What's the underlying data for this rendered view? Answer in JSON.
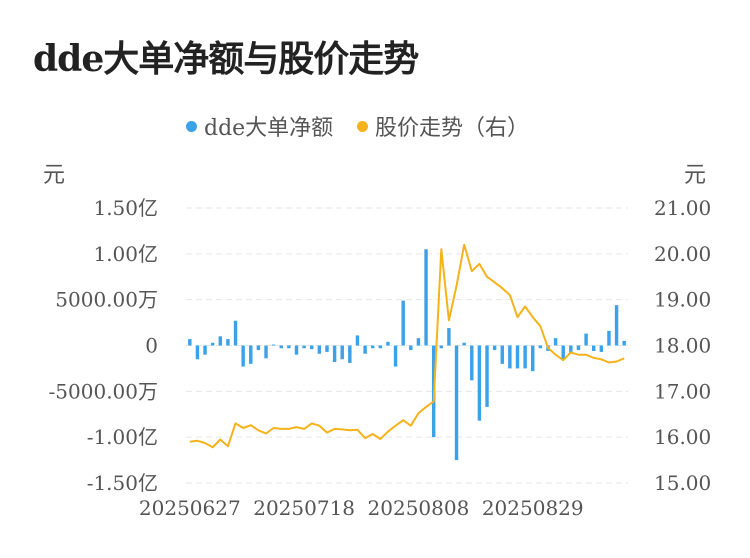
{
  "title": "dde大单净额与股价走势",
  "chart_data": {
    "type": "bar",
    "title": "dde大单净额与股价走势",
    "series": [
      {
        "name": "dde大单净额",
        "type": "bar",
        "color": "#3ba1e8",
        "axis": "left",
        "values": [
          700,
          -1500,
          -1000,
          300,
          1000,
          700,
          2700,
          -2300,
          -2000,
          -500,
          -1400,
          100,
          -300,
          -300,
          -1000,
          -300,
          -400,
          -900,
          -700,
          -1800,
          -1500,
          -1900,
          1100,
          -900,
          -300,
          -300,
          400,
          -2300,
          4900,
          -500,
          800,
          10500,
          -10000,
          -300,
          1900,
          -12500,
          300,
          -3800,
          -8200,
          -6700,
          -500,
          -2000,
          -2500,
          -2500,
          -2500,
          -2800,
          -300,
          -600,
          800,
          -1500,
          -900,
          -500,
          1300,
          -600,
          -700,
          1600,
          4400,
          500
        ]
      },
      {
        "name": "股价走势（右）",
        "type": "line",
        "color": "#f5b21b",
        "axis": "right",
        "values": [
          15.9,
          15.92,
          15.87,
          15.78,
          15.95,
          15.8,
          16.3,
          16.2,
          16.26,
          16.15,
          16.08,
          16.2,
          16.18,
          16.18,
          16.22,
          16.18,
          16.3,
          16.25,
          16.1,
          16.18,
          16.17,
          16.15,
          16.16,
          15.98,
          16.07,
          15.96,
          16.12,
          16.25,
          16.37,
          16.25,
          16.52,
          16.66,
          16.78,
          20.1,
          18.55,
          19.3,
          20.2,
          19.62,
          19.78,
          19.5,
          19.38,
          19.25,
          19.1,
          18.62,
          18.85,
          18.62,
          18.42,
          17.95,
          17.8,
          17.68,
          17.85,
          17.8,
          17.8,
          17.73,
          17.7,
          17.63,
          17.65,
          17.72
        ]
      }
    ],
    "x_tick_labels": [
      "20250627",
      "20250718",
      "20250808",
      "20250829"
    ],
    "x_tick_indices": [
      0,
      15,
      30,
      45
    ],
    "y_left": {
      "unit": "元",
      "ticks": [
        15000,
        10000,
        5000,
        0,
        -5000,
        -10000,
        -15000
      ],
      "tick_labels": [
        "1.50亿",
        "1.00亿",
        "5000.00万",
        "0",
        "-5000.00万",
        "-1.00亿",
        "-1.50亿"
      ],
      "range": [
        -15000,
        15000
      ]
    },
    "y_right": {
      "unit": "元",
      "ticks": [
        21,
        20,
        19,
        18,
        17,
        16,
        15
      ],
      "tick_labels": [
        "21.00",
        "20.00",
        "19.00",
        "18.00",
        "17.00",
        "16.00",
        "15.00"
      ],
      "range": [
        15,
        21
      ]
    },
    "grid": true,
    "legend_position": "top-center"
  }
}
